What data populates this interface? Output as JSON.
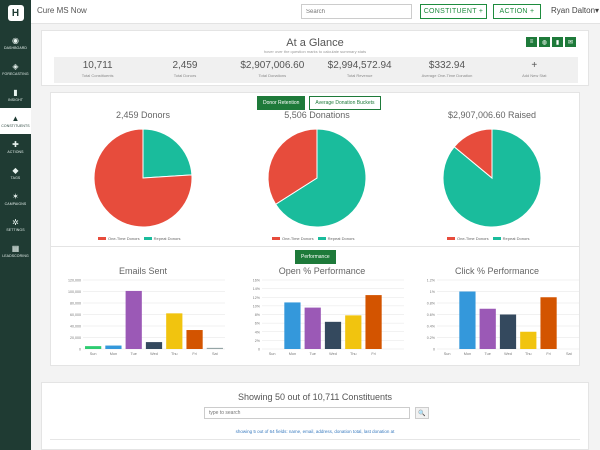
{
  "app": {
    "title": "Cure MS Now",
    "logo_letter": "H"
  },
  "sidebar": {
    "items": [
      {
        "label": "Dashboard",
        "icon": "◉"
      },
      {
        "label": "Forecasting",
        "icon": "◈"
      },
      {
        "label": "Insight",
        "icon": "▮"
      },
      {
        "label": "Constituents",
        "icon": "▲"
      },
      {
        "label": "Actions",
        "icon": "✚"
      },
      {
        "label": "Tags",
        "icon": "◆"
      },
      {
        "label": "Campaigns",
        "icon": "✶"
      },
      {
        "label": "Settings",
        "icon": "✲"
      },
      {
        "label": "Leadscoring",
        "icon": "▦"
      }
    ]
  },
  "topbar": {
    "search_placeholder": "Search",
    "constituent_label": "CONSTITUENT +",
    "action_label": "ACTION +",
    "user_name": "Ryan Dalton",
    "user_caret": "▾"
  },
  "glance": {
    "title": "At a Glance",
    "subtitle": "hover over the question marks to calculate summary stats",
    "stats": [
      {
        "value": "10,711",
        "label": "Total Constituents"
      },
      {
        "value": "2,459",
        "label": "Total Donors"
      },
      {
        "value": "$2,907,006.60",
        "label": "Total Donations"
      },
      {
        "value": "$2,994,572.94",
        "label": "Total Revenue"
      },
      {
        "value": "$332.94",
        "label": "Average One-Time Donation"
      },
      {
        "value": "+",
        "label": "Add New Stat"
      }
    ]
  },
  "pies": {
    "tab_active": "Donor Retention",
    "tab_other": "Average Donation Buckets",
    "legend": [
      "One-Time Donors",
      "Repeat Donors"
    ]
  },
  "performance": {
    "tab": "Performance"
  },
  "constituents_list": {
    "title": "Showing 50 out of 10,711 Constituents",
    "search_placeholder": "type to search",
    "search_icon": "🔍",
    "hint": "showing 5 out of 64 fields: name, email, address, donation total, last donation at"
  },
  "chart_data": [
    {
      "type": "pie",
      "title": "2,459 Donors",
      "categories": [
        "One-Time Donors",
        "Repeat Donors"
      ],
      "values": [
        76,
        24
      ],
      "colors": [
        "#e74c3c",
        "#1abc9c"
      ]
    },
    {
      "type": "pie",
      "title": "5,506 Donations",
      "categories": [
        "One-Time Donors",
        "Repeat Donors"
      ],
      "values": [
        34,
        66
      ],
      "colors": [
        "#e74c3c",
        "#1abc9c"
      ]
    },
    {
      "type": "pie",
      "title": "$2,907,006.60 Raised",
      "categories": [
        "One-Time Donors",
        "Repeat Donors"
      ],
      "values": [
        14,
        86
      ],
      "colors": [
        "#e74c3c",
        "#1abc9c"
      ]
    },
    {
      "type": "bar",
      "title": "Emails Sent",
      "categories": [
        "Sun",
        "Mon",
        "Tue",
        "Wed",
        "Thu",
        "Fri",
        "Sat"
      ],
      "values": [
        5000,
        6000,
        101000,
        12000,
        62000,
        33000,
        2000
      ],
      "colors": [
        "#2ecc71",
        "#3498db",
        "#9b59b6",
        "#34495e",
        "#f1c40f",
        "#d35400",
        "#95a5a6"
      ],
      "ylim": [
        0,
        120000
      ],
      "yticks": [
        "0",
        "20,000",
        "40,000",
        "60,000",
        "80,000",
        "100,000",
        "120,000"
      ]
    },
    {
      "type": "bar",
      "title": "Open % Performance",
      "categories": [
        "Sun",
        "Mon",
        "Tue",
        "Wed",
        "Thu",
        "Fri"
      ],
      "values": [
        0,
        10.8,
        9.6,
        6.3,
        7.8,
        12.5
      ],
      "colors": [
        "#2ecc71",
        "#3498db",
        "#9b59b6",
        "#34495e",
        "#f1c40f",
        "#d35400"
      ],
      "ylim": [
        0,
        16
      ],
      "yticks": [
        "0",
        "2%",
        "4%",
        "6%",
        "8%",
        "10%",
        "12%",
        "14%",
        "16%"
      ]
    },
    {
      "type": "bar",
      "title": "Click % Performance",
      "categories": [
        "Sun",
        "Mon",
        "Tue",
        "Wed",
        "Thu",
        "Fri",
        "Sat"
      ],
      "values": [
        0,
        1.0,
        0.7,
        0.6,
        0.3,
        0.9,
        0
      ],
      "colors": [
        "#2ecc71",
        "#3498db",
        "#9b59b6",
        "#34495e",
        "#f1c40f",
        "#d35400",
        "#95a5a6"
      ],
      "ylim": [
        0,
        1.2
      ],
      "yticks": [
        "0",
        "0.2%",
        "0.4%",
        "0.6%",
        "0.8%",
        "1%",
        "1.2%"
      ]
    }
  ]
}
